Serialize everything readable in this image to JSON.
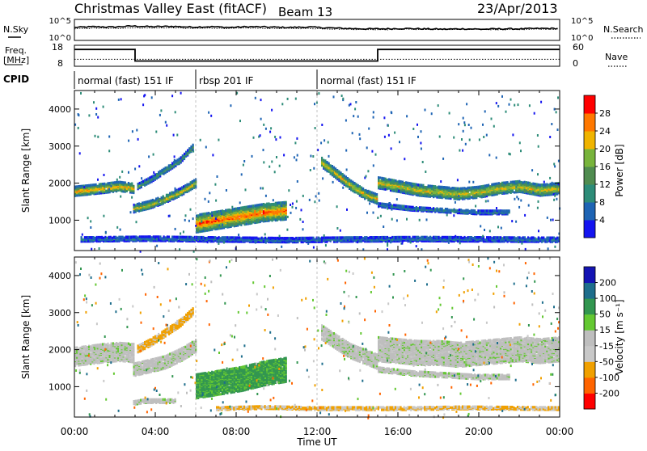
{
  "header": {
    "title": "Christmas Valley East (fitACF)",
    "beam": "Beam 13",
    "date": "23/Apr/2013"
  },
  "chart_data": [
    {
      "type": "line",
      "name": "nsky-nsearch",
      "labels": {
        "left": "N.Sky",
        "right": "N.Search"
      },
      "left_ticks": [
        "10^5",
        "10^0"
      ],
      "right_ticks": [
        "10^5",
        "10^0"
      ],
      "series": [
        {
          "name": "N.Sky",
          "x": [
            0,
            0.5,
            1,
            2,
            3,
            4,
            5,
            6,
            7,
            8,
            9,
            10,
            11,
            12,
            13,
            14,
            15,
            16,
            17,
            18,
            19,
            20,
            21,
            22,
            23,
            24
          ],
          "log10_value": [
            3.2,
            3.4,
            3.3,
            3.6,
            3.4,
            3.5,
            3.3,
            3.4,
            3.2,
            3.4,
            3.3,
            3.2,
            3.3,
            3.1,
            2.9,
            2.8,
            2.8,
            2.9,
            2.8,
            2.7,
            2.8,
            2.7,
            2.8,
            2.8,
            2.9,
            2.9
          ]
        },
        {
          "name": "N.Search",
          "x": [
            0,
            0.5,
            1,
            2,
            3,
            4,
            5,
            6,
            7,
            8,
            9,
            10,
            11,
            12,
            13,
            14,
            15,
            16,
            17,
            18,
            19,
            20,
            21,
            22,
            23,
            24
          ],
          "log10_value": [
            2.8,
            3.0,
            2.9,
            3.1,
            3.0,
            3.1,
            2.9,
            3.0,
            2.9,
            3.0,
            2.9,
            2.9,
            2.9,
            2.8,
            2.7,
            2.6,
            2.6,
            2.7,
            2.6,
            2.6,
            2.6,
            2.6,
            2.6,
            2.6,
            2.7,
            2.7
          ]
        }
      ]
    },
    {
      "type": "line",
      "name": "freq-nave",
      "labels": {
        "left": "Freq.",
        "left_unit": "[MHz]",
        "right": "Nave"
      },
      "left_ticks": [
        "18",
        "8"
      ],
      "right_ticks": [
        "60",
        "0"
      ],
      "freq_steps": [
        {
          "from": 0,
          "to": 3,
          "mhz": 16
        },
        {
          "from": 3,
          "to": 15,
          "mhz": 10.5
        },
        {
          "from": 15,
          "to": 24,
          "mhz": 16
        }
      ],
      "nave_level": 20
    },
    {
      "type": "table",
      "name": "cpid",
      "label": "CPID",
      "segments": [
        {
          "from": 0,
          "to": 6,
          "text": "normal (fast) 151 IF"
        },
        {
          "from": 6,
          "to": 12,
          "text": "rbsp 201 IF"
        },
        {
          "from": 12,
          "to": 24,
          "text": "normal (fast) 151 IF"
        }
      ]
    },
    {
      "type": "heatmap",
      "name": "power",
      "ylabel": "Slant Range [km]",
      "y_ticks": [
        1000,
        2000,
        3000,
        4000
      ],
      "colorbar": {
        "label": "Power [dB]",
        "ticks": [
          "28",
          "24",
          "20",
          "16",
          "12",
          "8",
          "4"
        ],
        "range": [
          0,
          32
        ]
      },
      "bands": [
        {
          "from": 0.0,
          "to": 2.9,
          "center_km": [
            1820,
            1860,
            1900,
            1950,
            1900
          ],
          "width_km": 250,
          "peak_db": 24
        },
        {
          "from": 2.9,
          "to": 6.0,
          "center_km": [
            1350,
            1450,
            1600,
            1800,
            2050
          ],
          "width_km": 200,
          "peak_db": 22
        },
        {
          "from": 3.1,
          "to": 5.9,
          "center_km": [
            1950,
            2150,
            2400,
            2650,
            3050
          ],
          "width_km": 140,
          "peak_db": 14
        },
        {
          "from": 6.0,
          "to": 10.5,
          "center_km": [
            950,
            1050,
            1150,
            1250,
            1300
          ],
          "width_km": 480,
          "peak_db": 28
        },
        {
          "from": 12.2,
          "to": 15.0,
          "center_km": [
            2600,
            2300,
            2000,
            1750,
            1600
          ],
          "width_km": 260,
          "peak_db": 22
        },
        {
          "from": 15.0,
          "to": 24.0,
          "center_km": [
            2050,
            1950,
            1850,
            1800,
            1750,
            1800,
            1900,
            1950,
            1850,
            1900
          ],
          "width_km": 300,
          "peak_db": 22
        },
        {
          "from": 15.0,
          "to": 21.5,
          "center_km": [
            1450,
            1350,
            1300,
            1250,
            1250
          ],
          "width_km": 100,
          "peak_db": 10
        },
        {
          "from": 0.3,
          "to": 24.0,
          "center_km": [
            520,
            540,
            520,
            500,
            520,
            530,
            520,
            510
          ],
          "width_km": 120,
          "peak_db": 8
        }
      ]
    },
    {
      "type": "heatmap",
      "name": "velocity",
      "ylabel": "Slant Range [km]",
      "xlabel": "Time UT",
      "x_ticks": [
        "00:00",
        "04:00",
        "08:00",
        "12:00",
        "16:00",
        "20:00",
        "00:00"
      ],
      "y_ticks": [
        1000,
        2000,
        3000,
        4000
      ],
      "colorbar": {
        "label": "Velocity [m s⁻¹]",
        "ticks": [
          "200",
          "100",
          "50",
          "15",
          "-15",
          "-50",
          "-100",
          "-200"
        ],
        "range": [
          -250,
          250
        ]
      },
      "bands": [
        {
          "from": 0.0,
          "to": 2.9,
          "center_km": [
            1850,
            1900,
            1950,
            1980,
            1950
          ],
          "width_km": 500,
          "vel": 0
        },
        {
          "from": 2.9,
          "to": 6.0,
          "center_km": [
            1500,
            1600,
            1700,
            1900,
            2150
          ],
          "width_km": 350,
          "vel": 0
        },
        {
          "from": 3.1,
          "to": 5.9,
          "center_km": [
            2050,
            2250,
            2500,
            2750,
            3100
          ],
          "width_km": 180,
          "vel": -60
        },
        {
          "from": 6.0,
          "to": 10.5,
          "center_km": [
            1050,
            1150,
            1250,
            1400,
            1500
          ],
          "width_km": 650,
          "vel": 60
        },
        {
          "from": 12.2,
          "to": 15.0,
          "center_km": [
            2500,
            2250,
            2000,
            1850,
            1700
          ],
          "width_km": 380,
          "vel": 0
        },
        {
          "from": 15.0,
          "to": 24.0,
          "center_km": [
            2050,
            2000,
            1950,
            1950,
            1900,
            1950,
            2000,
            2050,
            2000,
            2050
          ],
          "width_km": 650,
          "vel": 0
        },
        {
          "from": 15.0,
          "to": 21.5,
          "center_km": [
            1500,
            1400,
            1350,
            1300,
            1300
          ],
          "width_km": 120,
          "vel": 0
        },
        {
          "from": 2.9,
          "to": 5.0,
          "center_km": [
            600,
            650,
            650,
            650,
            650
          ],
          "width_km": 100,
          "vel": 0
        },
        {
          "from": 7.0,
          "to": 24.0,
          "center_km": [
            450,
            480,
            450,
            450,
            450,
            470,
            460,
            450
          ],
          "width_km": 80,
          "vel": -50
        }
      ]
    }
  ],
  "colors": {
    "power_scale": [
      "#1414f0",
      "#1e64b4",
      "#2d8c78",
      "#508c50",
      "#78b43c",
      "#f0b400",
      "#ff7800",
      "#ff0000"
    ],
    "velocity_scale": [
      "#ff0000",
      "#ff6400",
      "#f0a000",
      "#c8c8c8",
      "#bebebe",
      "#64c832",
      "#329650",
      "#1e6e8c",
      "#1414b4"
    ]
  }
}
